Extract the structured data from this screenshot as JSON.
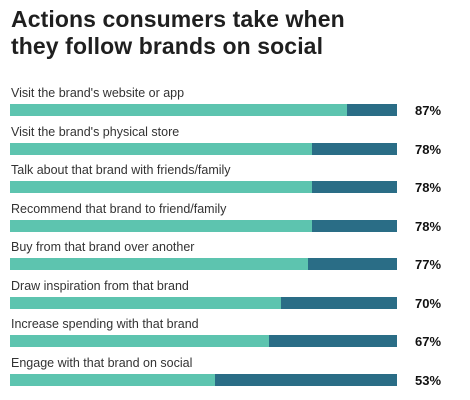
{
  "chart_data": {
    "type": "bar",
    "orientation": "horizontal",
    "title": "Actions consumers take when they follow brands on social",
    "categories": [
      "Visit the brand's website or app",
      "Visit the brand's physical store",
      "Talk about that brand with friends/family",
      "Recommend that brand to friend/family",
      "Buy from that brand over another",
      "Draw inspiration from that brand",
      "Increase spending with that brand",
      "Engage with that brand on social"
    ],
    "values": [
      87,
      78,
      78,
      78,
      77,
      70,
      67,
      53
    ],
    "value_labels": [
      "87%",
      "78%",
      "78%",
      "78%",
      "77%",
      "70%",
      "67%",
      "53%"
    ],
    "xlim": [
      0,
      100
    ],
    "grid": false,
    "legend": "none",
    "colors": {
      "fill": "#5dc4af",
      "remainder": "#2a6d86"
    }
  }
}
